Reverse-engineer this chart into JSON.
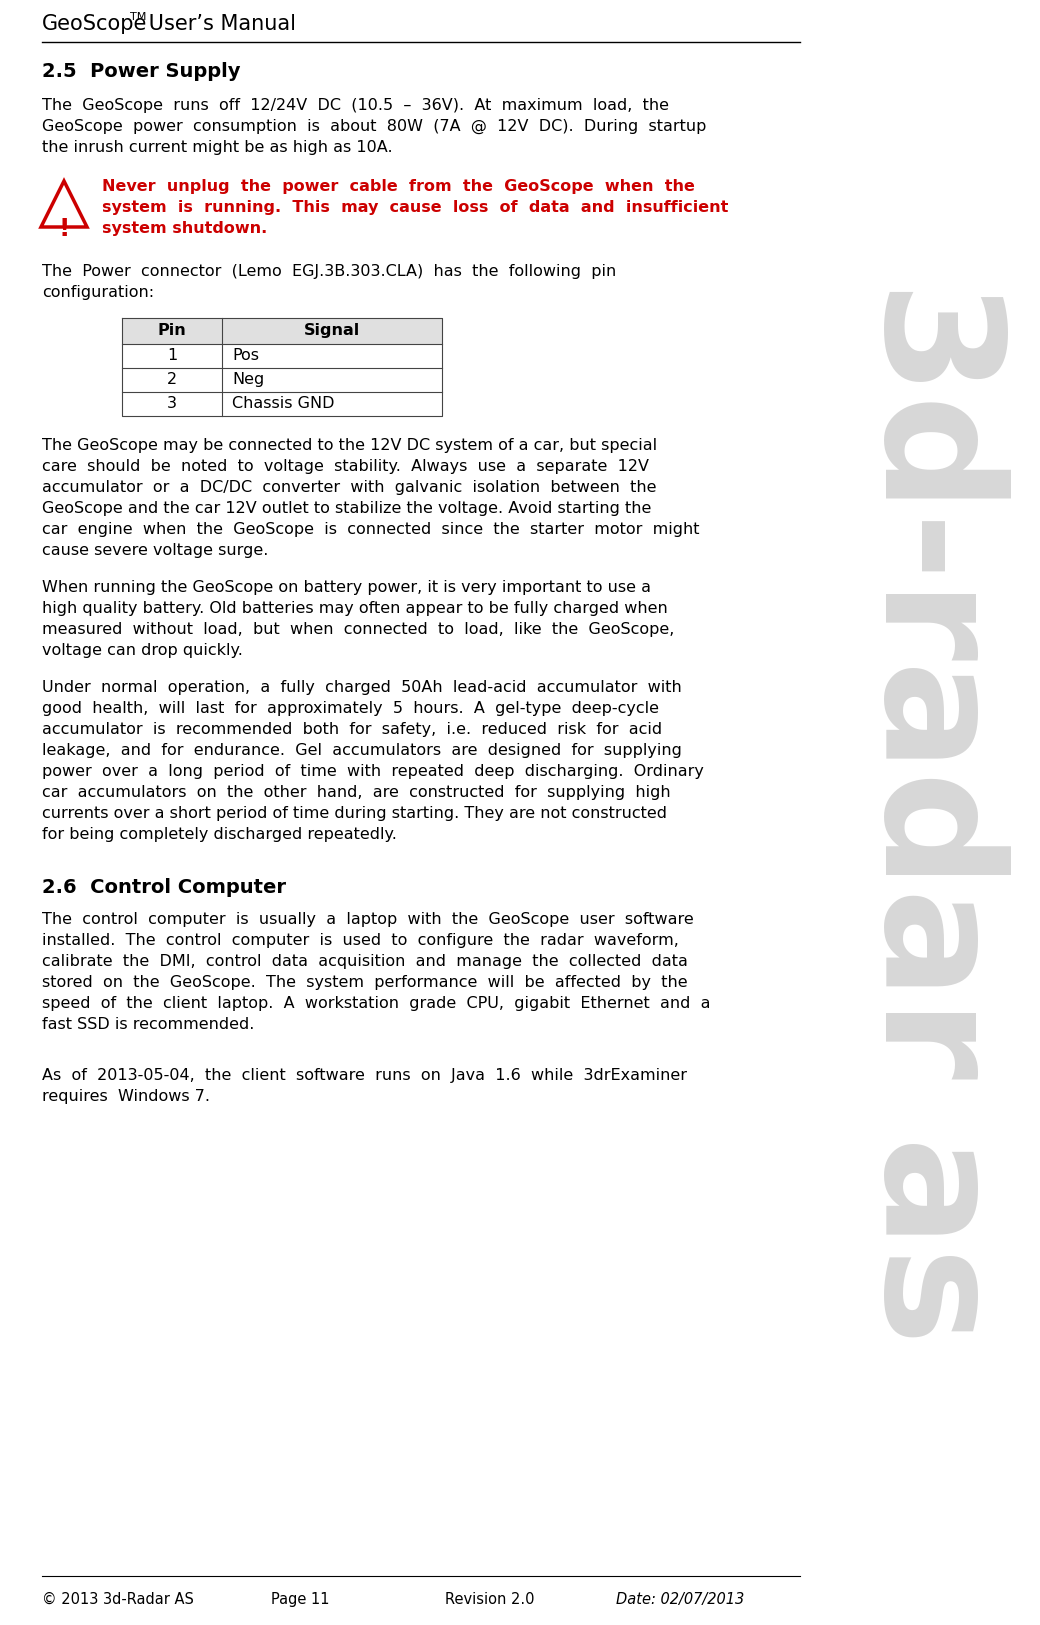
{
  "bg_color": "#ffffff",
  "sidebar_text": "3d-radar as",
  "sidebar_color": "#b0b0b0",
  "header_line_color": "#000000",
  "footer_line_color": "#000000",
  "text_color": "#000000",
  "warning_color": "#cc0000",
  "table_header_bg": "#e0e0e0",
  "table_border_color": "#444444",
  "section_25_title": "2.5  Power Supply",
  "section_26_title": "2.6  Control Computer",
  "footer_copyright": "© 2013 3d-Radar AS",
  "footer_page": "Page 11",
  "footer_revision": "Revision 2.0",
  "footer_date": "Date: 02/07/2013",
  "table_headers": [
    "Pin",
    "Signal"
  ],
  "table_rows": [
    [
      "1",
      "Pos"
    ],
    [
      "2",
      "Neg"
    ],
    [
      "3",
      "Chassis GND"
    ]
  ]
}
